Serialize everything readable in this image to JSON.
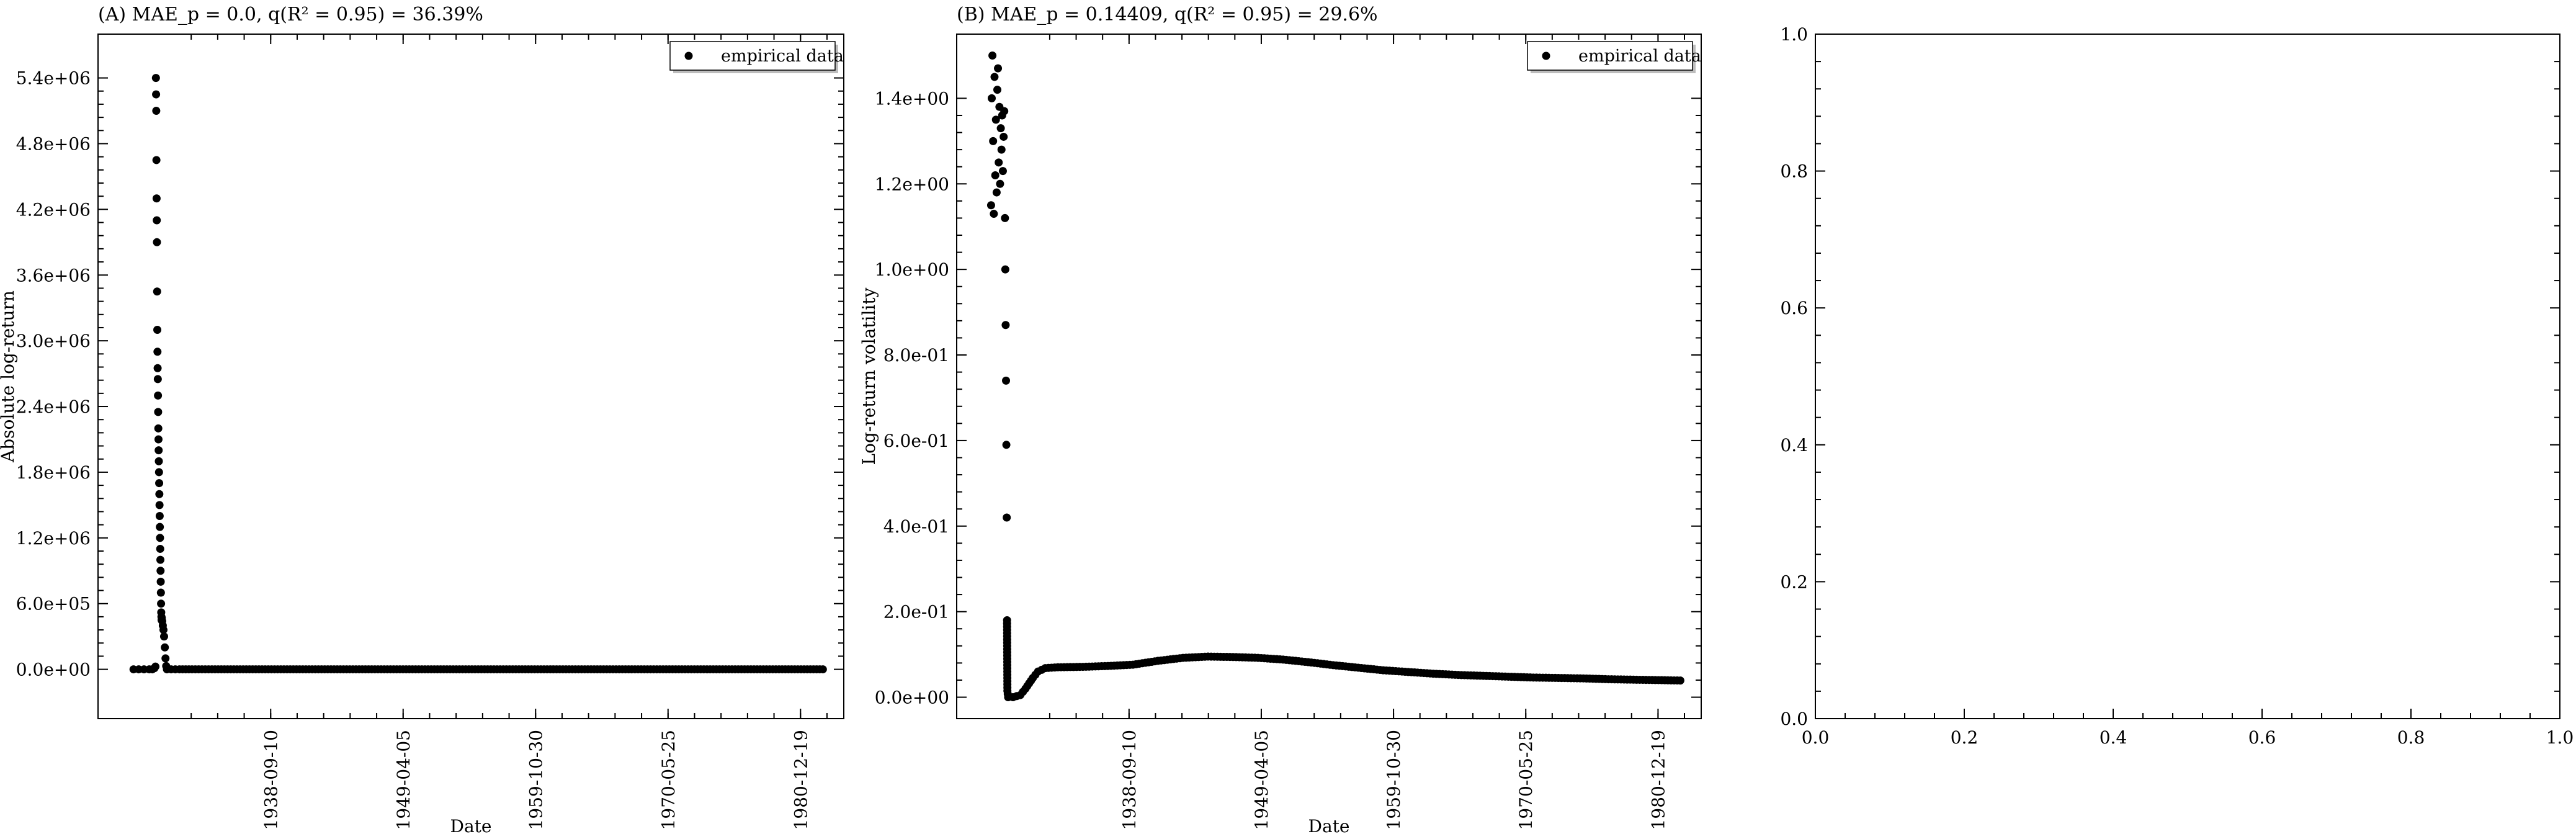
{
  "chart_data": [
    {
      "type": "scatter",
      "title": "(A) MAE_p = 0.0, q(R² = 0.95) = 36.39%",
      "xlabel": "Date",
      "ylabel": "Absolute log-return",
      "ylim": [
        -450000,
        5800000
      ],
      "xlim": [
        "1924-12-01",
        "1984-06-01"
      ],
      "x_ticks": [
        "1938-09-10",
        "1949-04-05",
        "1959-10-30",
        "1970-05-25",
        "1980-12-19"
      ],
      "y_ticks": [
        "0.0e+00",
        "6.0e+05",
        "1.2e+06",
        "1.8e+06",
        "2.4e+06",
        "3.0e+06",
        "3.6e+06",
        "4.2e+06",
        "4.8e+06",
        "5.4e+06"
      ],
      "y_tick_values": [
        0,
        600000,
        1200000,
        1800000,
        2400000,
        3000000,
        3600000,
        4200000,
        4800000,
        5400000
      ],
      "legend": [
        "empirical data"
      ],
      "legend_position": "top-right",
      "series": [
        {
          "name": "empirical data",
          "points": [
            [
              "1927-10-01",
              0
            ],
            [
              "1928-03-01",
              0
            ],
            [
              "1928-08-01",
              0
            ],
            [
              "1929-01-01",
              0
            ],
            [
              "1929-04-01",
              0
            ],
            [
              "1929-06-01",
              10000
            ],
            [
              "1929-07-01",
              25000
            ],
            [
              "1929-07-15",
              5400000
            ],
            [
              "1929-07-20",
              5250000
            ],
            [
              "1929-07-25",
              5100000
            ],
            [
              "1929-07-30",
              4650000
            ],
            [
              "1929-08-04",
              4300000
            ],
            [
              "1929-08-09",
              4100000
            ],
            [
              "1929-08-14",
              3900000
            ],
            [
              "1929-08-19",
              3450000
            ],
            [
              "1929-08-24",
              3100000
            ],
            [
              "1929-08-29",
              2900000
            ],
            [
              "1929-09-03",
              2750000
            ],
            [
              "1929-09-08",
              2650000
            ],
            [
              "1929-09-13",
              2500000
            ],
            [
              "1929-09-18",
              2350000
            ],
            [
              "1929-09-23",
              2200000
            ],
            [
              "1929-09-28",
              2100000
            ],
            [
              "1929-10-03",
              2000000
            ],
            [
              "1929-10-08",
              1900000
            ],
            [
              "1929-10-13",
              1800000
            ],
            [
              "1929-10-18",
              1700000
            ],
            [
              "1929-10-23",
              1600000
            ],
            [
              "1929-10-28",
              1500000
            ],
            [
              "1929-11-02",
              1400000
            ],
            [
              "1929-11-07",
              1300000
            ],
            [
              "1929-11-12",
              1200000
            ],
            [
              "1929-11-17",
              1100000
            ],
            [
              "1929-11-22",
              1000000
            ],
            [
              "1929-11-27",
              900000
            ],
            [
              "1929-12-02",
              800000
            ],
            [
              "1929-12-07",
              700000
            ],
            [
              "1929-12-12",
              600000
            ],
            [
              "1929-12-17",
              520000
            ],
            [
              "1929-12-22",
              480000
            ],
            [
              "1929-12-27",
              450000
            ],
            [
              "1930-01-01",
              470000
            ],
            [
              "1930-01-15",
              440000
            ],
            [
              "1930-02-01",
              400000
            ],
            [
              "1930-02-20",
              360000
            ],
            [
              "1930-03-10",
              300000
            ],
            [
              "1930-04-01",
              200000
            ],
            [
              "1930-04-20",
              100000
            ],
            [
              "1930-05-10",
              30000
            ],
            [
              "1930-06-01",
              0
            ],
            [
              "1930-10-01",
              0
            ],
            [
              "1931-06-01",
              0
            ],
            [
              "1932-06-01",
              0
            ],
            [
              "1934-01-01",
              0
            ],
            [
              "1936-01-01",
              0
            ],
            [
              "1938-01-01",
              0
            ],
            [
              "1940-01-01",
              0
            ],
            [
              "1942-01-01",
              0
            ],
            [
              "1944-01-01",
              0
            ],
            [
              "1946-01-01",
              0
            ],
            [
              "1948-01-01",
              0
            ],
            [
              "1950-01-01",
              0
            ],
            [
              "1952-01-01",
              0
            ],
            [
              "1954-01-01",
              0
            ],
            [
              "1956-01-01",
              0
            ],
            [
              "1958-01-01",
              0
            ],
            [
              "1960-01-01",
              0
            ],
            [
              "1962-01-01",
              0
            ],
            [
              "1964-01-01",
              0
            ],
            [
              "1966-01-01",
              0
            ],
            [
              "1968-01-01",
              0
            ],
            [
              "1970-01-01",
              0
            ],
            [
              "1972-01-01",
              0
            ],
            [
              "1974-01-01",
              0
            ],
            [
              "1976-01-01",
              0
            ],
            [
              "1978-01-01",
              0
            ],
            [
              "1980-01-01",
              0
            ],
            [
              "1982-01-01",
              0
            ],
            [
              "1982-10-01",
              0
            ]
          ]
        }
      ]
    },
    {
      "type": "scatter",
      "title": "(B) MAE_p = 0.14409, q(R² = 0.95) = 29.6%",
      "xlabel": "Date",
      "ylabel": "Log-return volatility",
      "ylim": [
        -0.05,
        1.55
      ],
      "xlim": [
        "1924-12-01",
        "1984-06-01"
      ],
      "x_ticks": [
        "1938-09-10",
        "1949-04-05",
        "1959-10-30",
        "1970-05-25",
        "1980-12-19"
      ],
      "y_ticks": [
        "0.0e+00",
        "2.0e-01",
        "4.0e-01",
        "6.0e-01",
        "8.0e-01",
        "1.0e+00",
        "1.2e+00",
        "1.4e+00"
      ],
      "y_tick_values": [
        0,
        0.2,
        0.4,
        0.6,
        0.8,
        1.0,
        1.2,
        1.4
      ],
      "legend": [
        "empirical data"
      ],
      "legend_position": "top-right",
      "series": [
        {
          "name": "empirical data",
          "points": [
            [
              "1927-09-01",
              1.15
            ],
            [
              "1927-09-20",
              1.4
            ],
            [
              "1927-10-10",
              1.5
            ],
            [
              "1927-10-30",
              1.3
            ],
            [
              "1927-11-20",
              1.13
            ],
            [
              "1927-12-10",
              1.45
            ],
            [
              "1928-01-01",
              1.22
            ],
            [
              "1928-01-20",
              1.35
            ],
            [
              "1928-02-10",
              1.18
            ],
            [
              "1928-03-01",
              1.42
            ],
            [
              "1928-03-20",
              1.47
            ],
            [
              "1928-04-10",
              1.25
            ],
            [
              "1928-05-01",
              1.38
            ],
            [
              "1928-05-20",
              1.2
            ],
            [
              "1928-06-10",
              1.33
            ],
            [
              "1928-07-01",
              1.28
            ],
            [
              "1928-07-20",
              1.36
            ],
            [
              "1928-08-10",
              1.23
            ],
            [
              "1928-09-01",
              1.31
            ],
            [
              "1928-09-20",
              1.37
            ],
            [
              "1928-10-10",
              1.12
            ],
            [
              "1928-10-20",
              1.0
            ],
            [
              "1928-10-30",
              0.87
            ],
            [
              "1928-11-10",
              0.74
            ],
            [
              "1928-11-20",
              0.59
            ],
            [
              "1928-12-01",
              0.42
            ],
            [
              "1928-12-10",
              0.18
            ],
            [
              "1928-12-20",
              0.015
            ],
            [
              "1929-01-10",
              0.0
            ],
            [
              "1929-06-01",
              0.0
            ],
            [
              "1930-01-01",
              0.005
            ],
            [
              "1930-06-01",
              0.02
            ],
            [
              "1931-01-01",
              0.045
            ],
            [
              "1931-06-01",
              0.06
            ],
            [
              "1932-01-01",
              0.068
            ],
            [
              "1933-01-01",
              0.07
            ],
            [
              "1935-01-01",
              0.071
            ],
            [
              "1937-01-01",
              0.073
            ],
            [
              "1939-01-01",
              0.076
            ],
            [
              "1941-01-01",
              0.085
            ],
            [
              "1943-01-01",
              0.092
            ],
            [
              "1945-01-01",
              0.095
            ],
            [
              "1947-01-01",
              0.094
            ],
            [
              "1949-01-01",
              0.092
            ],
            [
              "1951-01-01",
              0.088
            ],
            [
              "1953-01-01",
              0.082
            ],
            [
              "1955-01-01",
              0.075
            ],
            [
              "1957-01-01",
              0.069
            ],
            [
              "1959-01-01",
              0.063
            ],
            [
              "1961-01-01",
              0.059
            ],
            [
              "1963-01-01",
              0.055
            ],
            [
              "1965-01-01",
              0.052
            ],
            [
              "1967-01-01",
              0.05
            ],
            [
              "1969-01-01",
              0.048
            ],
            [
              "1971-01-01",
              0.046
            ],
            [
              "1973-01-01",
              0.045
            ],
            [
              "1975-01-01",
              0.044
            ],
            [
              "1977-01-01",
              0.042
            ],
            [
              "1979-01-01",
              0.041
            ],
            [
              "1981-01-01",
              0.04
            ],
            [
              "1982-10-01",
              0.039
            ]
          ]
        }
      ]
    },
    {
      "type": "scatter",
      "title": "",
      "xlabel": "",
      "ylabel": "",
      "xlim": [
        0.0,
        1.0
      ],
      "ylim": [
        0.0,
        1.0
      ],
      "x_ticks": [
        "0.0",
        "0.2",
        "0.4",
        "0.6",
        "0.8",
        "1.0"
      ],
      "y_ticks": [
        "0.0",
        "0.2",
        "0.4",
        "0.6",
        "0.8",
        "1.0"
      ],
      "x_tick_values": [
        0,
        0.2,
        0.4,
        0.6,
        0.8,
        1.0
      ],
      "y_tick_values": [
        0,
        0.2,
        0.4,
        0.6,
        0.8,
        1.0
      ],
      "series": []
    }
  ]
}
